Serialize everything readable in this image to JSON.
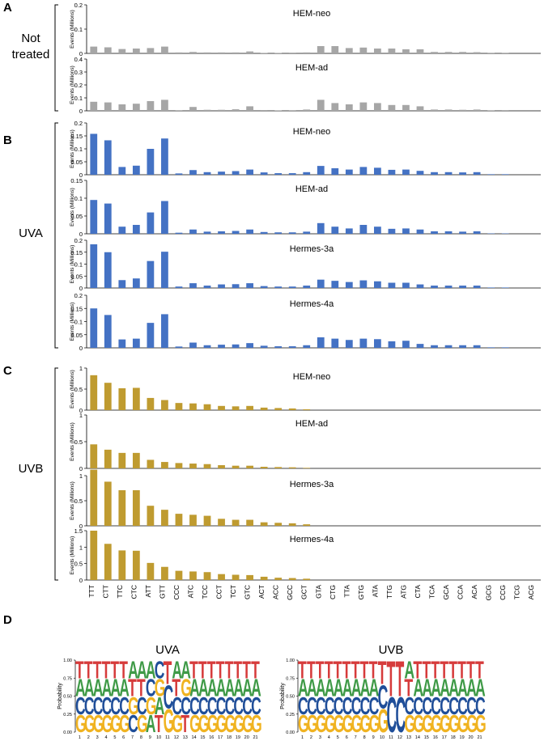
{
  "panel_letters": [
    "A",
    "B",
    "C",
    "D"
  ],
  "group_labels": [
    "Not\ntreated",
    "UVA",
    "UVB"
  ],
  "ylabel": "Events (Millions)",
  "colors": {
    "not_treated": "#a6a6a6",
    "uva": "#4472c4",
    "uvb": "#bf9b30",
    "logo_T": "#d63b3b",
    "logo_A": "#3f9a47",
    "logo_C": "#1f4e99",
    "logo_G": "#f0b321"
  },
  "chart_data": [
    {
      "type": "bar",
      "panel": "A",
      "title": "HEM-neo",
      "ylabel": "Events (Millions)",
      "ylim": [
        0,
        0.2
      ],
      "yticks": [
        "0",
        "0.1",
        "0.2"
      ],
      "categories": [
        "TTT",
        "CTT",
        "TTC",
        "CTC",
        "ATT",
        "GTT",
        "CCC",
        "ATC",
        "TCC",
        "CCT",
        "TCT",
        "GTC",
        "ACT",
        "ACC",
        "GCC",
        "GCT",
        "GTA",
        "CTG",
        "TTA",
        "GTG",
        "ATA",
        "TTG",
        "ATG",
        "CTA",
        "TCA",
        "GCA",
        "CCA",
        "ACA",
        "GCG",
        "CCG",
        "TCG",
        "ACG"
      ],
      "values": [
        0.028,
        0.025,
        0.018,
        0.02,
        0.022,
        0.028,
        0.004,
        0.006,
        0.004,
        0.004,
        0.004,
        0.008,
        0.002,
        0.002,
        0.003,
        0.004,
        0.03,
        0.03,
        0.022,
        0.024,
        0.02,
        0.02,
        0.017,
        0.017,
        0.006,
        0.006,
        0.006,
        0.005,
        0.001,
        0.001,
        0,
        0
      ]
    },
    {
      "type": "bar",
      "panel": "A",
      "title": "HEM-ad",
      "ylabel": "Events (Millions)",
      "ylim": [
        0,
        0.4
      ],
      "yticks": [
        "0",
        "0.1",
        "0.2",
        "0.3",
        "0.4"
      ],
      "values": [
        0.07,
        0.065,
        0.05,
        0.055,
        0.075,
        0.085,
        0.005,
        0.03,
        0.008,
        0.008,
        0.012,
        0.035,
        0.006,
        0.004,
        0.005,
        0.01,
        0.085,
        0.06,
        0.05,
        0.065,
        0.06,
        0.045,
        0.045,
        0.035,
        0.01,
        0.01,
        0.008,
        0.01,
        0.002,
        0.001,
        0,
        0
      ]
    },
    {
      "type": "bar",
      "panel": "B",
      "title": "HEM-neo",
      "ylabel": "Events (Millions)",
      "ylim": [
        0,
        0.2
      ],
      "yticks": [
        "0",
        "0.05",
        "0.1",
        "0.15",
        "0.2"
      ],
      "values": [
        0.158,
        0.133,
        0.03,
        0.035,
        0.1,
        0.14,
        0.005,
        0.018,
        0.01,
        0.012,
        0.014,
        0.02,
        0.009,
        0.006,
        0.006,
        0.01,
        0.034,
        0.025,
        0.02,
        0.03,
        0.027,
        0.019,
        0.02,
        0.015,
        0.01,
        0.01,
        0.009,
        0.01,
        0.002,
        0.002,
        0,
        0
      ]
    },
    {
      "type": "bar",
      "panel": "B",
      "title": "HEM-ad",
      "ylabel": "Events (Millions)",
      "ylim": [
        0,
        0.15
      ],
      "yticks": [
        "0",
        "0.05",
        "0.1",
        "0.15"
      ],
      "values": [
        0.095,
        0.085,
        0.02,
        0.025,
        0.06,
        0.092,
        0.003,
        0.012,
        0.006,
        0.007,
        0.008,
        0.012,
        0.005,
        0.004,
        0.004,
        0.006,
        0.03,
        0.02,
        0.015,
        0.025,
        0.02,
        0.014,
        0.015,
        0.012,
        0.007,
        0.007,
        0.006,
        0.007,
        0.001,
        0.001,
        0,
        0
      ]
    },
    {
      "type": "bar",
      "panel": "B",
      "title": "Hermes-3a",
      "ylabel": "Events (Millions)",
      "ylim": [
        0,
        0.2
      ],
      "yticks": [
        "0",
        "0.05",
        "0.1",
        "0.15",
        "0.2"
      ],
      "values": [
        0.183,
        0.15,
        0.033,
        0.04,
        0.113,
        0.152,
        0.006,
        0.02,
        0.01,
        0.015,
        0.016,
        0.02,
        0.008,
        0.006,
        0.006,
        0.01,
        0.035,
        0.03,
        0.025,
        0.032,
        0.028,
        0.022,
        0.022,
        0.015,
        0.01,
        0.01,
        0.01,
        0.01,
        0.002,
        0.002,
        0,
        0
      ]
    },
    {
      "type": "bar",
      "panel": "B",
      "title": "Hermes-4a",
      "ylabel": "Events (Millions)",
      "ylim": [
        0,
        0.2
      ],
      "yticks": [
        "0",
        "0.05",
        "0.1",
        "0.15",
        "0.2"
      ],
      "values": [
        0.15,
        0.125,
        0.032,
        0.035,
        0.095,
        0.128,
        0.005,
        0.02,
        0.01,
        0.012,
        0.013,
        0.018,
        0.008,
        0.006,
        0.006,
        0.01,
        0.04,
        0.035,
        0.03,
        0.035,
        0.033,
        0.025,
        0.027,
        0.015,
        0.01,
        0.01,
        0.01,
        0.01,
        0.002,
        0.002,
        0,
        0
      ]
    },
    {
      "type": "bar",
      "panel": "C",
      "title": "HEM-neo",
      "ylabel": "Events (Millions)",
      "ylim": [
        0,
        1
      ],
      "yticks": [
        "0",
        "0.5",
        "1"
      ],
      "values": [
        0.83,
        0.65,
        0.52,
        0.53,
        0.29,
        0.24,
        0.17,
        0.16,
        0.14,
        0.1,
        0.09,
        0.1,
        0.06,
        0.05,
        0.04,
        0.02,
        0,
        0,
        0,
        0,
        0,
        0,
        0,
        0,
        0,
        0,
        0,
        0,
        0,
        0,
        0,
        0
      ]
    },
    {
      "type": "bar",
      "panel": "C",
      "title": "HEM-ad",
      "ylabel": "Events (Millions)",
      "ylim": [
        0,
        1
      ],
      "yticks": [
        "0",
        "0.5",
        "1"
      ],
      "values": [
        0.45,
        0.35,
        0.29,
        0.29,
        0.16,
        0.12,
        0.1,
        0.09,
        0.08,
        0.06,
        0.05,
        0.05,
        0.03,
        0.025,
        0.02,
        0.01,
        0,
        0,
        0,
        0,
        0,
        0,
        0,
        0,
        0,
        0,
        0,
        0,
        0,
        0,
        0,
        0
      ]
    },
    {
      "type": "bar",
      "panel": "C",
      "title": "Hermes-3a",
      "ylabel": "Events (Millions)",
      "ylim": [
        0,
        1
      ],
      "yticks": [
        "0",
        "0.5",
        "1"
      ],
      "values": [
        1.12,
        0.88,
        0.71,
        0.71,
        0.4,
        0.32,
        0.24,
        0.22,
        0.2,
        0.14,
        0.12,
        0.12,
        0.07,
        0.06,
        0.05,
        0.03,
        0,
        0,
        0,
        0,
        0,
        0,
        0,
        0,
        0,
        0,
        0,
        0,
        0,
        0,
        0,
        0
      ]
    },
    {
      "type": "bar",
      "panel": "C",
      "title": "Hermes-4a",
      "ylabel": "Events (Millions)",
      "ylim": [
        0,
        1.5
      ],
      "yticks": [
        "0",
        "0.5",
        "1",
        "1.5"
      ],
      "values": [
        1.5,
        1.1,
        0.9,
        0.89,
        0.52,
        0.4,
        0.28,
        0.26,
        0.24,
        0.18,
        0.16,
        0.15,
        0.1,
        0.07,
        0.06,
        0.04,
        0,
        0,
        0,
        0,
        0,
        0,
        0,
        0,
        0,
        0,
        0,
        0,
        0,
        0,
        0,
        0
      ]
    },
    {
      "type": "logo",
      "panel": "D",
      "title": "UVA",
      "ylabel": "Probability",
      "ylim": [
        0,
        1
      ],
      "yticks": [
        "0.00",
        "0.25",
        "0.50",
        "0.75",
        "1.00"
      ],
      "positions": [
        "1",
        "2",
        "3",
        "4",
        "5",
        "6",
        "7",
        "8",
        "9",
        "10",
        "11",
        "12",
        "13",
        "14",
        "15",
        "16",
        "17",
        "18",
        "19",
        "20",
        "21"
      ],
      "columns": [
        [
          "G",
          "C",
          "A",
          "T"
        ],
        [
          "G",
          "C",
          "A",
          "T"
        ],
        [
          "G",
          "C",
          "A",
          "T"
        ],
        [
          "G",
          "C",
          "A",
          "T"
        ],
        [
          "G",
          "C",
          "A",
          "T"
        ],
        [
          "G",
          "C",
          "A",
          "T"
        ],
        [
          "C",
          "G",
          "T",
          "A"
        ],
        [
          "G",
          "C",
          "T",
          "A"
        ],
        [
          "A",
          "G",
          "C",
          "A"
        ],
        [
          "T",
          "A",
          "G",
          "C"
        ],
        [
          "G",
          "C",
          "T"
        ],
        [
          "G",
          "C",
          "T",
          "A"
        ],
        [
          "T",
          "C",
          "G",
          "A"
        ],
        [
          "G",
          "C",
          "A",
          "T"
        ],
        [
          "G",
          "C",
          "A",
          "T"
        ],
        [
          "G",
          "C",
          "A",
          "T"
        ],
        [
          "G",
          "C",
          "A",
          "T"
        ],
        [
          "G",
          "C",
          "A",
          "T"
        ],
        [
          "G",
          "C",
          "A",
          "T"
        ],
        [
          "G",
          "C",
          "A",
          "T"
        ],
        [
          "G",
          "C",
          "A",
          "T"
        ]
      ]
    },
    {
      "type": "logo",
      "panel": "D",
      "title": "UVB",
      "ylabel": "Probability",
      "ylim": [
        0,
        1
      ],
      "yticks": [
        "0.00",
        "0.25",
        "0.50",
        "0.75",
        "1.00"
      ],
      "positions": [
        "1",
        "2",
        "3",
        "4",
        "5",
        "6",
        "7",
        "8",
        "9",
        "10",
        "11",
        "12",
        "13",
        "14",
        "15",
        "16",
        "17",
        "18",
        "19",
        "20",
        "21"
      ],
      "columns": [
        [
          "G",
          "C",
          "A",
          "T"
        ],
        [
          "G",
          "C",
          "A",
          "T"
        ],
        [
          "G",
          "C",
          "A",
          "T"
        ],
        [
          "G",
          "C",
          "A",
          "T"
        ],
        [
          "G",
          "C",
          "A",
          "T"
        ],
        [
          "G",
          "C",
          "A",
          "T"
        ],
        [
          "G",
          "C",
          "A",
          "T"
        ],
        [
          "G",
          "C",
          "A",
          "T"
        ],
        [
          "G",
          "C",
          "A",
          "T"
        ],
        [
          "G",
          "C",
          "T"
        ],
        [
          "C",
          "T"
        ],
        [
          "C",
          "T"
        ],
        [
          "G",
          "C",
          "T",
          "A"
        ],
        [
          "G",
          "C",
          "A",
          "T"
        ],
        [
          "G",
          "C",
          "A",
          "T"
        ],
        [
          "G",
          "C",
          "A",
          "T"
        ],
        [
          "G",
          "C",
          "A",
          "T"
        ],
        [
          "G",
          "C",
          "A",
          "T"
        ],
        [
          "G",
          "C",
          "A",
          "T"
        ],
        [
          "G",
          "C",
          "A",
          "T"
        ],
        [
          "G",
          "C",
          "A",
          "T"
        ]
      ]
    }
  ]
}
